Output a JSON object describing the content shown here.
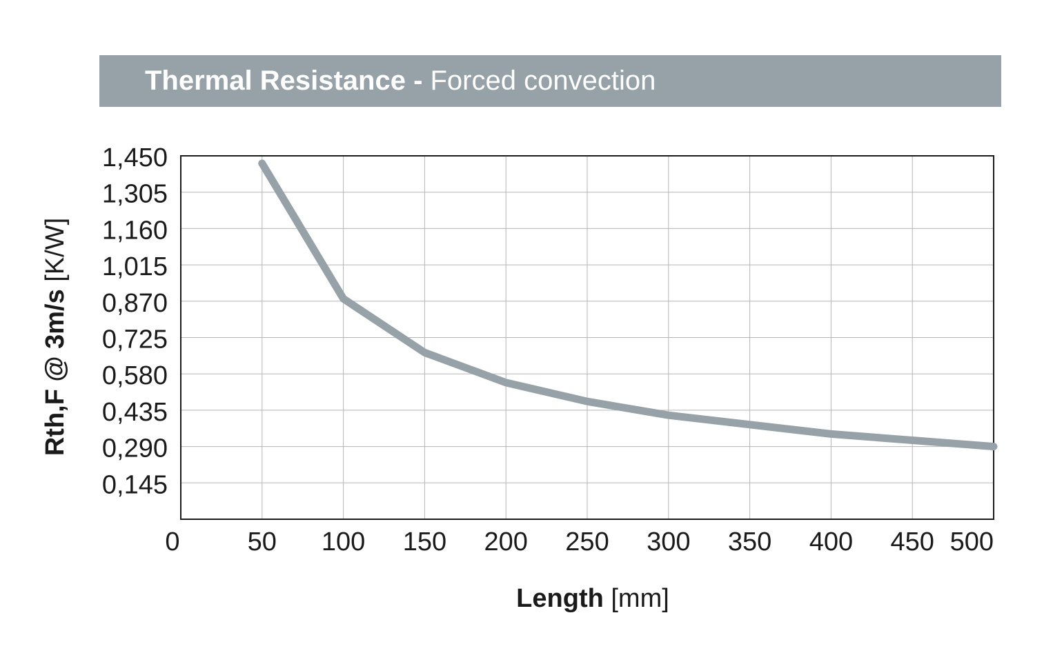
{
  "header": {
    "title_bold": "Thermal Resistance",
    "title_sep": " - ",
    "title_light": "Forced convection"
  },
  "chart_data": {
    "type": "line",
    "title": "Thermal Resistance - Forced convection",
    "xlabel_bold": "Length",
    "xlabel_unit": "[mm]",
    "ylabel_bold": "Rth,F @ 3m/s",
    "ylabel_unit": "[K/W]",
    "xlim": [
      0,
      500
    ],
    "ylim": [
      0,
      1.45
    ],
    "x_ticks": [
      0,
      50,
      100,
      150,
      200,
      250,
      300,
      350,
      400,
      450,
      500
    ],
    "x_tick_labels": [
      "0",
      "50",
      "100",
      "150",
      "200",
      "250",
      "300",
      "350",
      "400",
      "450",
      "500"
    ],
    "y_ticks": [
      0.145,
      0.29,
      0.435,
      0.58,
      0.725,
      0.87,
      1.015,
      1.16,
      1.305,
      1.45
    ],
    "y_tick_labels": [
      "0,145",
      "0,290",
      "0,435",
      "0,580",
      "0,725",
      "0,870",
      "1,015",
      "1,160",
      "1,305",
      "1,450"
    ],
    "grid": true,
    "series": [
      {
        "x": [
          50,
          100,
          150,
          200,
          250,
          300,
          400,
          500
        ],
        "y": [
          1.42,
          0.88,
          0.665,
          0.545,
          0.47,
          0.415,
          0.34,
          0.29
        ]
      }
    ],
    "line_color": "#96a1a8"
  }
}
